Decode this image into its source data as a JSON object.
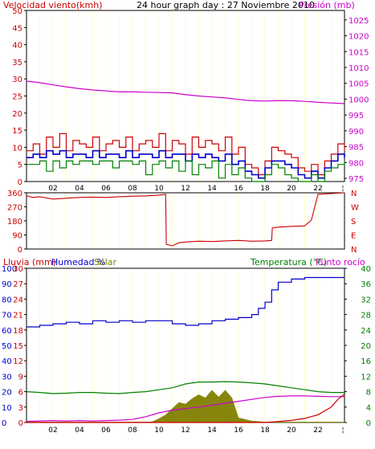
{
  "colors": {
    "red": "#cc0000",
    "blue": "#0000cc",
    "green": "#008000",
    "magenta": "#cc00cc",
    "olive": "#808000",
    "grid": "#ffffcc",
    "gray": "#888888"
  },
  "chart_data": [
    {
      "id": "wind",
      "type": "line",
      "title": "24 hour graph day : 27 Noviembre 2010",
      "left_label": "Velocidad viento(kmh)",
      "right_label": "Presión (mb)",
      "y_left_ticks": [
        "0",
        "5",
        "10",
        "15",
        "20",
        "25",
        "30",
        "35",
        "40",
        "45",
        "50"
      ],
      "y_left_range": [
        0,
        50
      ],
      "y_right_ticks": [
        "975",
        "980",
        "985",
        "990",
        "995",
        "1000",
        "1005",
        "1010",
        "1015",
        "1020",
        "1025"
      ],
      "y_right_range": [
        974,
        1028
      ],
      "x_ticks": [
        "02",
        "04",
        "06",
        "08",
        "10",
        "12",
        "14",
        "16",
        "18",
        "20",
        "22"
      ],
      "x_range": [
        0,
        24
      ],
      "series": [
        {
          "color": "#cc00cc",
          "axis": "right",
          "x": [
            0,
            1,
            2,
            3,
            4,
            5,
            6,
            7,
            8,
            9,
            10,
            11,
            12,
            13,
            14,
            15,
            16,
            17,
            18,
            19,
            20,
            21,
            22,
            23,
            24
          ],
          "values": [
            1005.7,
            1005.2,
            1004.5,
            1003.9,
            1003.3,
            1002.9,
            1002.6,
            1002.3,
            1002.3,
            1002.2,
            1002.1,
            1002.0,
            1001.4,
            1001.0,
            1000.7,
            1000.4,
            999.9,
            999.5,
            999.4,
            999.5,
            999.5,
            999.3,
            999.0,
            998.8,
            998.6
          ]
        },
        {
          "color": "#cc0000",
          "axis": "left",
          "x": [
            0,
            0.5,
            1,
            1.5,
            2,
            2.5,
            3,
            3.5,
            4,
            4.5,
            5,
            5.5,
            6,
            6.5,
            7,
            7.5,
            8,
            8.5,
            9,
            9.5,
            10,
            10.5,
            11,
            11.5,
            12,
            12.5,
            13,
            13.5,
            14,
            14.5,
            15,
            15.5,
            16,
            16.5,
            17,
            17.5,
            18,
            18.5,
            19,
            19.5,
            20,
            20.5,
            21,
            21.5,
            22,
            22.5,
            23,
            23.5,
            24
          ],
          "values": [
            9,
            11,
            8,
            13,
            10,
            14,
            9,
            12,
            11,
            10,
            13,
            9,
            11,
            12,
            10,
            13,
            9,
            11,
            12,
            10,
            14,
            9,
            12,
            11,
            8,
            13,
            10,
            12,
            11,
            9,
            13,
            8,
            10,
            5,
            4,
            2,
            6,
            10,
            9,
            8,
            7,
            4,
            3,
            5,
            2,
            6,
            8,
            11,
            9
          ]
        },
        {
          "color": "#0000cc",
          "axis": "left",
          "x": [
            0,
            0.5,
            1,
            1.5,
            2,
            2.5,
            3,
            3.5,
            4,
            4.5,
            5,
            5.5,
            6,
            6.5,
            7,
            7.5,
            8,
            8.5,
            9,
            9.5,
            10,
            10.5,
            11,
            11.5,
            12,
            12.5,
            13,
            13.5,
            14,
            14.5,
            15,
            15.5,
            16,
            16.5,
            17,
            17.5,
            18,
            18.5,
            19,
            19.5,
            20,
            20.5,
            21,
            21.5,
            22,
            22.5,
            23,
            23.5,
            24
          ],
          "values": [
            7,
            8,
            7,
            9,
            8,
            9,
            7,
            8,
            8,
            7,
            9,
            7,
            8,
            8,
            7,
            9,
            7,
            8,
            8,
            7,
            9,
            7,
            8,
            8,
            6,
            8,
            7,
            8,
            7,
            6,
            8,
            5,
            6,
            3,
            2,
            1,
            4,
            6,
            6,
            5,
            4,
            2,
            1,
            3,
            1,
            4,
            6,
            8,
            7
          ]
        },
        {
          "color": "#008000",
          "axis": "left",
          "x": [
            0,
            0.5,
            1,
            1.5,
            2,
            2.5,
            3,
            3.5,
            4,
            4.5,
            5,
            5.5,
            6,
            6.5,
            7,
            7.5,
            8,
            8.5,
            9,
            9.5,
            10,
            10.5,
            11,
            11.5,
            12,
            12.5,
            13,
            13.5,
            14,
            14.5,
            15,
            15.5,
            16,
            16.5,
            17,
            17.5,
            18,
            18.5,
            19,
            19.5,
            20,
            20.5,
            21,
            21.5,
            22,
            22.5,
            23,
            23.5,
            24
          ],
          "values": [
            5,
            5,
            6,
            3,
            6,
            4,
            6,
            5,
            6,
            6,
            5,
            6,
            6,
            4,
            6,
            6,
            5,
            6,
            2,
            5,
            6,
            4,
            6,
            3,
            6,
            2,
            5,
            4,
            6,
            1,
            5,
            2,
            4,
            1,
            0,
            0,
            2,
            5,
            4,
            2,
            1,
            0,
            0,
            2,
            0,
            3,
            4,
            5,
            6
          ]
        }
      ]
    },
    {
      "id": "direction",
      "type": "line",
      "y_left_ticks": [
        "0",
        "90",
        "180",
        "270",
        "360"
      ],
      "y_left_range": [
        0,
        360
      ],
      "y_right_ticks": [
        "N",
        "E",
        "S",
        "W",
        "N"
      ],
      "x_range": [
        0,
        24
      ],
      "series": [
        {
          "color": "#cc0000",
          "x": [
            0,
            0.5,
            1,
            2,
            3,
            4,
            5,
            6,
            7,
            8,
            9,
            10,
            10.5,
            10.55,
            11,
            11.5,
            12,
            13,
            14,
            15,
            16,
            17,
            18,
            18.5,
            18.55,
            19,
            20,
            21,
            21.5,
            22,
            23,
            24
          ],
          "values": [
            340,
            330,
            335,
            320,
            325,
            330,
            332,
            330,
            335,
            338,
            340,
            345,
            350,
            30,
            20,
            40,
            45,
            50,
            48,
            52,
            55,
            50,
            52,
            55,
            135,
            140,
            145,
            148,
            185,
            350,
            355,
            360
          ]
        }
      ]
    },
    {
      "id": "climate",
      "type": "line",
      "left_label_rain": "Lluvia (mm)",
      "left_label_humidity": "Humedad %",
      "left_label_solar": "Solar",
      "right_label_temp": "Temperatura (°C)",
      "right_label_dew": "Punto rocío",
      "y_humidity_ticks": [
        "0",
        "10",
        "20",
        "30",
        "40",
        "50",
        "60",
        "70",
        "80",
        "90",
        "100"
      ],
      "y_humidity_range": [
        0,
        100
      ],
      "y_rain_ticks": [
        "0",
        "3",
        "6",
        "9",
        "12",
        "15",
        "18",
        "21",
        "24",
        "27",
        "30"
      ],
      "y_rain_range": [
        0,
        30
      ],
      "y_temp_ticks": [
        "0",
        "4",
        "8",
        "12",
        "16",
        "20",
        "24",
        "28",
        "32",
        "36",
        "40"
      ],
      "y_temp_range": [
        0,
        40
      ],
      "x_ticks": [
        "02",
        "04",
        "06",
        "08",
        "10",
        "12",
        "14",
        "16",
        "18",
        "20",
        "22"
      ],
      "x_range": [
        0,
        24
      ],
      "series": [
        {
          "color": "#0000cc",
          "axis": "humidity",
          "x": [
            0,
            1,
            2,
            3,
            4,
            5,
            6,
            7,
            8,
            9,
            10,
            11,
            12,
            13,
            14,
            15,
            16,
            17,
            17.5,
            18,
            18.5,
            19,
            20,
            21,
            22,
            23,
            24
          ],
          "values": [
            62,
            63,
            64,
            65,
            64,
            66,
            65,
            66,
            65,
            66,
            66,
            64,
            63,
            64,
            66,
            67,
            68,
            70,
            74,
            78,
            86,
            91,
            93,
            94,
            94,
            94,
            94
          ]
        },
        {
          "color": "#008000",
          "axis": "temp",
          "x": [
            0,
            1,
            2,
            3,
            4,
            5,
            6,
            7,
            8,
            9,
            10,
            11,
            12,
            13,
            14,
            15,
            16,
            17,
            18,
            19,
            20,
            21,
            22,
            23,
            24
          ],
          "values": [
            8,
            7.8,
            7.5,
            7.6,
            7.8,
            7.8,
            7.6,
            7.5,
            7.8,
            8,
            8.5,
            9,
            10,
            10.5,
            10.5,
            10.6,
            10.5,
            10.3,
            10,
            9.5,
            9,
            8.5,
            8,
            7.8,
            7.8
          ]
        },
        {
          "color": "#cc00cc",
          "axis": "temp",
          "x": [
            0,
            1,
            2,
            3,
            4,
            5,
            6,
            7,
            8,
            9,
            10,
            11,
            12,
            13,
            14,
            15,
            16,
            17,
            18,
            19,
            20,
            21,
            22,
            23,
            24
          ],
          "values": [
            0.3,
            0.4,
            0.5,
            0.4,
            0.5,
            0.4,
            0.5,
            0.6,
            0.8,
            1.5,
            2.5,
            3.2,
            3.6,
            4,
            4.5,
            5,
            5.5,
            6,
            6.5,
            6.8,
            6.9,
            6.9,
            6.8,
            6.7,
            6.7
          ]
        },
        {
          "color": "#cc0000",
          "axis": "rain",
          "x": [
            0,
            18,
            19,
            20,
            21,
            22,
            23,
            23.5,
            24
          ],
          "values": [
            0,
            0,
            0.2,
            0.4,
            0.8,
            1.5,
            3,
            4.5,
            5.5
          ]
        }
      ],
      "solar": {
        "color": "#808000",
        "x": [
          0,
          1,
          2,
          3,
          4,
          5,
          6,
          7,
          8,
          9,
          9.5,
          10,
          10.5,
          11,
          11.5,
          12,
          12.5,
          13,
          13.5,
          14,
          14.5,
          15,
          15.5,
          16,
          17,
          18,
          19,
          24
        ],
        "values": [
          3,
          3,
          3,
          3,
          3,
          3,
          3,
          3,
          3,
          3,
          5,
          25,
          50,
          90,
          130,
          120,
          155,
          180,
          160,
          210,
          165,
          210,
          160,
          30,
          10,
          3,
          3,
          3
        ],
        "max": 1000
      }
    }
  ],
  "labels": {
    "wind_title": "24 hour graph day : 27 Noviembre 2010",
    "wind_left": "Velocidad viento(kmh)",
    "wind_right": "Presión (mb)",
    "rain": "Lluvia (mm)",
    "humidity": "Humedad %",
    "solar": "Solar",
    "temp": "Temperatura (°C)",
    "dew": "Punto rocío"
  }
}
